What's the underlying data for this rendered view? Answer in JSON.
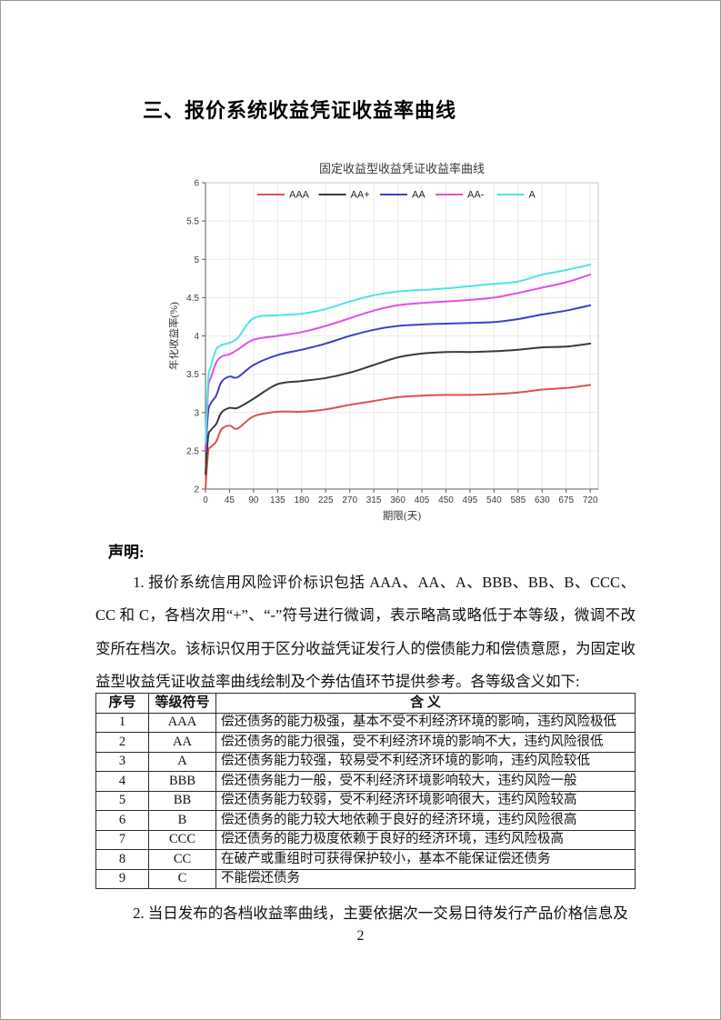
{
  "page": {
    "heading": "三、报价系统收益凭证收益率曲线",
    "declaration_label": "声明:",
    "paragraph1": "1. 报价系统信用风险评价标识包括 AAA、AA、A、BBB、BB、B、CCC、CC 和 C，各档次用“+”、“-”符号进行微调，表示略高或略低于本等级，微调不改变所在档次。该标识仅用于区分收益凭证发行人的偿债能力和偿债意愿，为固定收益型收益凭证收益率曲线绘制及个券估值环节提供参考。各等级含义如下:",
    "paragraph2": "2. 当日发布的各档收益率曲线，主要依据次一交易日待发行产品价格信息及",
    "page_number": "2"
  },
  "chart_data": {
    "type": "line",
    "title": "固定收益型收益凭证收益率曲线",
    "xlabel": "期限(天)",
    "ylabel": "年化收益率(%)",
    "xlim": [
      0,
      735
    ],
    "ylim": [
      2,
      6
    ],
    "xticks": [
      0,
      45,
      90,
      135,
      180,
      225,
      270,
      315,
      360,
      405,
      450,
      495,
      540,
      585,
      630,
      675,
      720
    ],
    "yticks": [
      2,
      2.5,
      3,
      3.5,
      4,
      4.5,
      5,
      5.5,
      6
    ],
    "grid": true,
    "legend_position": "top-inside-horizontal",
    "x": [
      0,
      5,
      10,
      20,
      30,
      45,
      60,
      90,
      135,
      180,
      225,
      270,
      315,
      360,
      405,
      450,
      495,
      540,
      585,
      630,
      675,
      720
    ],
    "series": [
      {
        "name": "AAA",
        "color": "#d9534f",
        "values": [
          2.0,
          2.48,
          2.55,
          2.62,
          2.78,
          2.83,
          2.79,
          2.95,
          3.01,
          3.01,
          3.04,
          3.1,
          3.15,
          3.2,
          3.22,
          3.23,
          3.23,
          3.24,
          3.26,
          3.3,
          3.32,
          3.36
        ]
      },
      {
        "name": "AA+",
        "color": "#3b3b3b",
        "values": [
          2.2,
          2.68,
          2.77,
          2.85,
          3.0,
          3.06,
          3.06,
          3.18,
          3.37,
          3.41,
          3.45,
          3.52,
          3.62,
          3.72,
          3.77,
          3.79,
          3.79,
          3.8,
          3.82,
          3.85,
          3.86,
          3.9
        ]
      },
      {
        "name": "AA",
        "color": "#3e3ecd",
        "values": [
          2.5,
          3.0,
          3.12,
          3.22,
          3.4,
          3.47,
          3.46,
          3.62,
          3.75,
          3.82,
          3.9,
          4.0,
          4.08,
          4.13,
          4.15,
          4.16,
          4.17,
          4.18,
          4.22,
          4.28,
          4.33,
          4.4
        ]
      },
      {
        "name": "AA-",
        "color": "#e24fe2",
        "values": [
          2.5,
          3.3,
          3.45,
          3.65,
          3.73,
          3.76,
          3.82,
          3.95,
          4.0,
          4.05,
          4.13,
          4.23,
          4.33,
          4.4,
          4.43,
          4.45,
          4.47,
          4.5,
          4.56,
          4.63,
          4.7,
          4.8
        ]
      },
      {
        "name": "A",
        "color": "#4fe3e3",
        "values": [
          2.6,
          3.42,
          3.6,
          3.82,
          3.88,
          3.91,
          3.97,
          4.23,
          4.27,
          4.29,
          4.35,
          4.45,
          4.53,
          4.58,
          4.6,
          4.62,
          4.65,
          4.68,
          4.71,
          4.8,
          4.86,
          4.93
        ]
      }
    ]
  },
  "table": {
    "headers": [
      "序号",
      "等级符号",
      "含  义"
    ],
    "rows": [
      [
        "1",
        "AAA",
        "偿还债务的能力极强，基本不受不利经济环境的影响，违约风险极低"
      ],
      [
        "2",
        "AA",
        "偿还债务的能力很强，受不利经济环境的影响不大，违约风险很低"
      ],
      [
        "3",
        "A",
        "偿还债务能力较强，较易受不利经济环境的影响，违约风险较低"
      ],
      [
        "4",
        "BBB",
        "偿还债务能力一般，受不利经济环境影响较大，违约风险一般"
      ],
      [
        "5",
        "BB",
        "偿还债务能力较弱，受不利经济环境影响很大，违约风险较高"
      ],
      [
        "6",
        "B",
        "偿还债务的能力较大地依赖于良好的经济环境，违约风险很高"
      ],
      [
        "7",
        "CCC",
        "偿还债务的能力极度依赖于良好的经济环境，违约风险极高"
      ],
      [
        "8",
        "CC",
        "在破产或重组时可获得保护较小，基本不能保证偿还债务"
      ],
      [
        "9",
        "C",
        "不能偿还债务"
      ]
    ]
  }
}
